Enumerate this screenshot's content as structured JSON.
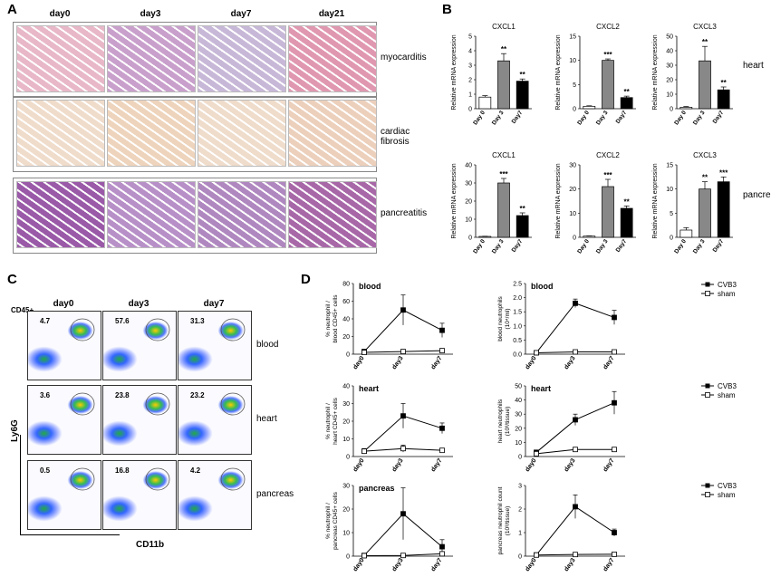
{
  "panels": {
    "A": "A",
    "B": "B",
    "C": "C",
    "D": "D"
  },
  "histology": {
    "columns": [
      "day0",
      "day3",
      "day7",
      "day21"
    ],
    "rows": [
      {
        "label": "myocarditis",
        "colors": [
          "#e8b8c8",
          "#c9a0cc",
          "#c8b8d8",
          "#e098b0"
        ]
      },
      {
        "label": "cardiac\nfibrosis",
        "colors": [
          "#f0dccb",
          "#eed4bc",
          "#efdccb",
          "#ecd0bc"
        ]
      },
      {
        "label": "pancreatitis",
        "colors": [
          "#9a5aa8",
          "#b890c8",
          "#b088c0",
          "#a868a8"
        ]
      }
    ]
  },
  "facs": {
    "columns": [
      "day0",
      "day3",
      "day7"
    ],
    "rows": [
      {
        "label": "blood",
        "values": [
          "4.7",
          "57.6",
          "31.3"
        ]
      },
      {
        "label": "heart",
        "values": [
          "3.6",
          "23.8",
          "23.2"
        ]
      },
      {
        "label": "pancreas",
        "values": [
          "0.5",
          "16.8",
          "4.2"
        ]
      }
    ],
    "gate": "CD45+",
    "xaxis": "CD11b",
    "yaxis": "Ly6G"
  },
  "chart_data": [
    {
      "type": "bar",
      "panel": "B",
      "title": "CXCL1",
      "ylabel": "Relative mRNA expression",
      "categories": [
        "Day 0",
        "Day 3",
        "Day7"
      ],
      "values": [
        0.8,
        3.3,
        1.9
      ],
      "errors": [
        0.1,
        0.5,
        0.15
      ],
      "ylim": [
        0,
        5
      ],
      "ticks": [
        0,
        1,
        2,
        3,
        4,
        5
      ],
      "sig": [
        "",
        "**",
        "**"
      ],
      "colors": [
        "#fff",
        "#888",
        "#000"
      ]
    },
    {
      "type": "bar",
      "panel": "B",
      "title": "CXCL2",
      "ylabel": "Relative mRNA expression",
      "categories": [
        "Day 0",
        "Day 3",
        "Day7"
      ],
      "values": [
        0.5,
        10,
        2.3
      ],
      "errors": [
        0.1,
        0.3,
        0.3
      ],
      "ylim": [
        0,
        15
      ],
      "ticks": [
        0,
        5,
        10,
        15
      ],
      "sig": [
        "",
        "***",
        "**"
      ],
      "colors": [
        "#fff",
        "#888",
        "#000"
      ]
    },
    {
      "type": "bar",
      "panel": "B",
      "title": "CXCL3",
      "ylabel": "Relative mRNA expression",
      "categories": [
        "Day 0",
        "Day 3",
        "Day7"
      ],
      "values": [
        1,
        33,
        13
      ],
      "errors": [
        0.5,
        10,
        2
      ],
      "ylim": [
        0,
        50
      ],
      "ticks": [
        0,
        10,
        20,
        30,
        40,
        50
      ],
      "sig": [
        "",
        "**",
        "**"
      ],
      "colors": [
        "#fff",
        "#888",
        "#000"
      ]
    },
    {
      "type": "bar",
      "panel": "B",
      "title": "CXCL1",
      "ylabel": "Relative mRNA expression",
      "categories": [
        "Day 0",
        "Day 3",
        "Day7"
      ],
      "values": [
        0.5,
        30,
        12
      ],
      "errors": [
        0.1,
        2.5,
        1.5
      ],
      "ylim": [
        0,
        40
      ],
      "ticks": [
        0,
        10,
        20,
        30,
        40
      ],
      "sig": [
        "",
        "***",
        "**"
      ],
      "colors": [
        "#fff",
        "#888",
        "#000"
      ]
    },
    {
      "type": "bar",
      "panel": "B",
      "title": "CXCL2",
      "ylabel": "Relative mRNA expression",
      "categories": [
        "Day 0",
        "Day 3",
        "Day7"
      ],
      "values": [
        0.5,
        21,
        12
      ],
      "errors": [
        0.1,
        3,
        1
      ],
      "ylim": [
        0,
        30
      ],
      "ticks": [
        0,
        10,
        20,
        30
      ],
      "sig": [
        "",
        "***",
        "**"
      ],
      "colors": [
        "#fff",
        "#888",
        "#000"
      ]
    },
    {
      "type": "bar",
      "panel": "B",
      "title": "CXCL3",
      "ylabel": "Relative mRNA expression",
      "categories": [
        "Day 0",
        "Day 3",
        "Day7"
      ],
      "values": [
        1.5,
        10,
        11.5
      ],
      "errors": [
        0.5,
        1.5,
        1
      ],
      "ylim": [
        0,
        15
      ],
      "ticks": [
        0,
        5,
        10,
        15
      ],
      "sig": [
        "",
        "**",
        "***"
      ],
      "colors": [
        "#fff",
        "#888",
        "#000"
      ]
    },
    {
      "type": "line",
      "panel": "D",
      "title": "blood",
      "ylabel": "% neutrophil /\nblood CD45+ cells",
      "categories": [
        "day0",
        "day3",
        "day7"
      ],
      "ylim": [
        0,
        80
      ],
      "ticks": [
        0,
        20,
        40,
        60,
        80
      ],
      "series": [
        {
          "name": "CVB3",
          "values": [
            3,
            50,
            27
          ],
          "errors": [
            1,
            17,
            8
          ]
        },
        {
          "name": "sham",
          "values": [
            2,
            3,
            4
          ],
          "errors": [
            0.5,
            1,
            1
          ]
        }
      ]
    },
    {
      "type": "line",
      "panel": "D",
      "title": "blood",
      "ylabel": "blood neutrophils\n(10⁴/ml)",
      "categories": [
        "day0",
        "day3",
        "day7"
      ],
      "ylim": [
        0,
        2.5
      ],
      "ticks": [
        0,
        0.5,
        1,
        1.5,
        2,
        2.5
      ],
      "tickLabels": [
        "0.0",
        "0.5",
        "1.0",
        "1.5",
        "2.0",
        "2.5"
      ],
      "series": [
        {
          "name": "CVB3",
          "values": [
            0.05,
            1.8,
            1.3
          ],
          "errors": [
            0.02,
            0.15,
            0.25
          ]
        },
        {
          "name": "sham",
          "values": [
            0.05,
            0.08,
            0.08
          ],
          "errors": [
            0.01,
            0.02,
            0.02
          ]
        }
      ]
    },
    {
      "type": "line",
      "panel": "D",
      "title": "heart",
      "ylabel": "% neutrophil /\nheart CD45+ cells",
      "categories": [
        "day0",
        "day3",
        "day7"
      ],
      "ylim": [
        0,
        40
      ],
      "ticks": [
        0,
        10,
        20,
        30,
        40
      ],
      "series": [
        {
          "name": "CVB3",
          "values": [
            3,
            23,
            16
          ],
          "errors": [
            1.5,
            7,
            3
          ]
        },
        {
          "name": "sham",
          "values": [
            3,
            4.5,
            3.5
          ],
          "errors": [
            1,
            2,
            1
          ]
        }
      ]
    },
    {
      "type": "line",
      "panel": "D",
      "title": "heart",
      "ylabel": "heart neutrophils\n(10³/tissue)",
      "categories": [
        "day0",
        "day3",
        "day7"
      ],
      "ylim": [
        0,
        50
      ],
      "ticks": [
        0,
        10,
        20,
        30,
        40,
        50
      ],
      "series": [
        {
          "name": "CVB3",
          "values": [
            3,
            26,
            38
          ],
          "errors": [
            1,
            4,
            8
          ]
        },
        {
          "name": "sham",
          "values": [
            2,
            5,
            5
          ],
          "errors": [
            0.5,
            1,
            1
          ]
        }
      ]
    },
    {
      "type": "line",
      "panel": "D",
      "title": "pancreas",
      "ylabel": "% neutrophil /\npancreas CD45+ cells",
      "categories": [
        "day0",
        "day3",
        "day7"
      ],
      "ylim": [
        0,
        30
      ],
      "ticks": [
        0,
        10,
        20,
        30
      ],
      "series": [
        {
          "name": "CVB3",
          "values": [
            0.3,
            18,
            4
          ],
          "errors": [
            0.2,
            11,
            3
          ]
        },
        {
          "name": "sham",
          "values": [
            0.2,
            0.3,
            1
          ],
          "errors": [
            0.1,
            0.2,
            1
          ]
        }
      ]
    },
    {
      "type": "line",
      "panel": "D",
      "title": "",
      "ylabel": "pancreas neutrophil count\n(10³/tissue)",
      "categories": [
        "day0",
        "day3",
        "day7"
      ],
      "ylim": [
        0,
        3
      ],
      "ticks": [
        0,
        1,
        2,
        3
      ],
      "series": [
        {
          "name": "CVB3",
          "values": [
            0.05,
            2.1,
            1
          ],
          "errors": [
            0.02,
            0.5,
            0.15
          ]
        },
        {
          "name": "sham",
          "values": [
            0.05,
            0.07,
            0.08
          ],
          "errors": [
            0.01,
            0.02,
            0.02
          ]
        }
      ]
    }
  ],
  "side_labels": {
    "heart": "heart",
    "pancreas": "pancreas"
  },
  "legend": {
    "cvb3": "CVB3",
    "sham": "sham"
  }
}
